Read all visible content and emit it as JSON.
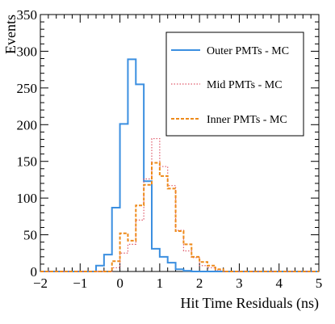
{
  "chart_data": {
    "type": "line",
    "xlabel": "Hit Time Residuals (ns)",
    "ylabel": "Events",
    "xlim": [
      -2,
      5
    ],
    "ylim": [
      0,
      350
    ],
    "x_ticks": [
      -2,
      -1,
      0,
      1,
      2,
      3,
      4,
      5
    ],
    "y_ticks": [
      0,
      50,
      100,
      150,
      200,
      250,
      300,
      350
    ],
    "grid": false,
    "legend_position": "top-right",
    "bin_edges": [
      -2.0,
      -1.8,
      -1.6,
      -1.4,
      -1.2,
      -1.0,
      -0.8,
      -0.6,
      -0.4,
      -0.2,
      0.0,
      0.2,
      0.4,
      0.6,
      0.8,
      1.0,
      1.2,
      1.4,
      1.6,
      1.8,
      2.0,
      2.2,
      2.4,
      2.6,
      2.8,
      3.0,
      3.2,
      3.4,
      3.6,
      3.8,
      4.0,
      4.2,
      4.4,
      4.6,
      4.8,
      5.0
    ],
    "series": [
      {
        "name": "Outer PMTs - MC",
        "color": "#3b8fe0",
        "style": "solid",
        "values": [
          0,
          0,
          0,
          0,
          0,
          0,
          0,
          8,
          23,
          87,
          201,
          289,
          255,
          123,
          31,
          20,
          12,
          3,
          1,
          0,
          0,
          0,
          0,
          0,
          0,
          0,
          0,
          0,
          0,
          0,
          0,
          0,
          0,
          0,
          0
        ]
      },
      {
        "name": "Mid PMTs - MC",
        "color": "#e05a6a",
        "style": "dotted",
        "values": [
          0,
          0,
          0,
          0,
          0,
          0,
          0,
          0,
          0,
          5,
          25,
          37,
          70,
          126,
          181,
          143,
          117,
          56,
          28,
          19,
          8,
          5,
          2,
          0,
          0,
          0,
          0,
          0,
          0,
          0,
          0,
          0,
          0,
          0,
          0
        ]
      },
      {
        "name": "Inner PMTs - MC",
        "color": "#ee8a1a",
        "style": "dashed",
        "values": [
          0,
          0,
          0,
          0,
          0,
          0,
          0,
          0,
          0,
          14,
          52,
          42,
          90,
          118,
          148,
          130,
          113,
          55,
          37,
          20,
          13,
          8,
          3,
          0,
          0,
          0,
          0,
          0,
          0,
          0,
          0,
          0,
          0,
          0,
          0
        ]
      }
    ]
  }
}
